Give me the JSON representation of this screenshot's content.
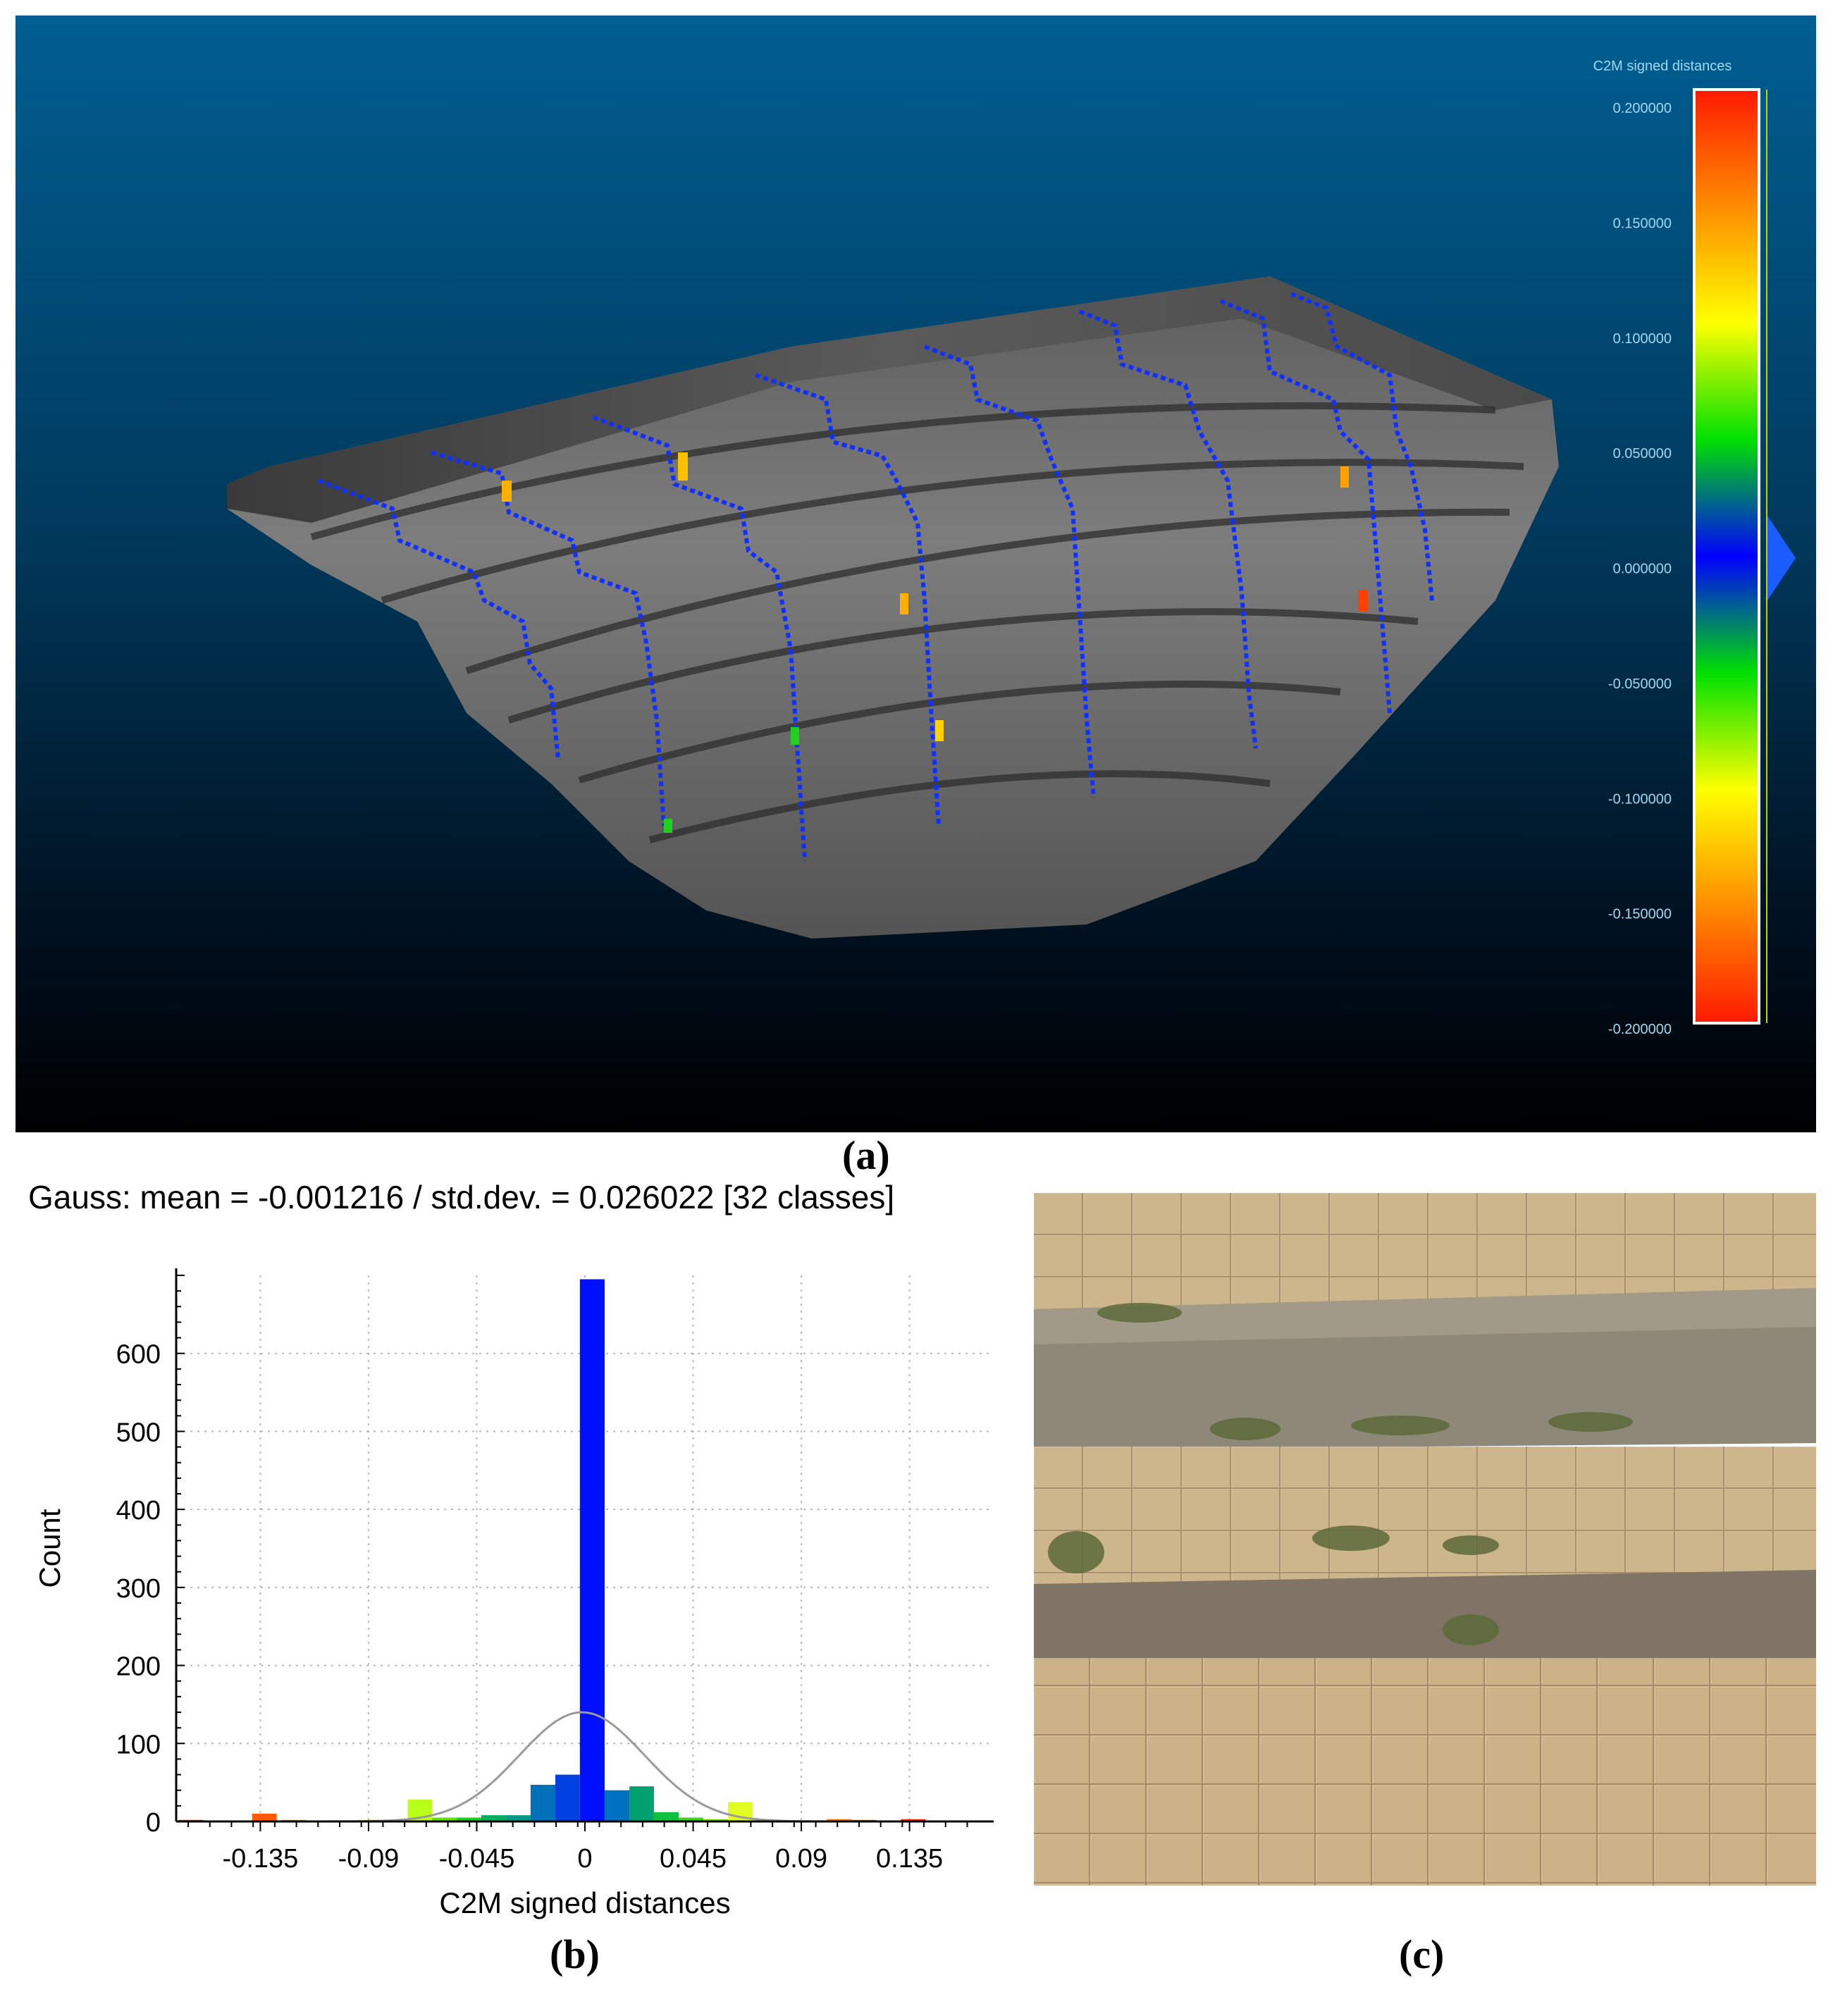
{
  "panel_a": {
    "caption": "(a)",
    "colorbar": {
      "title": "C2M signed distances",
      "ticks": [
        "0.200000",
        "0.150000",
        "0.100000",
        "0.050000",
        "0.000000",
        "-0.050000",
        "-0.100000",
        "-0.150000",
        "-0.200000"
      ],
      "stops": [
        {
          "v": 0.2,
          "c": "#ff1a00"
        },
        {
          "v": 0.1,
          "c": "#ffff00"
        },
        {
          "v": 0.05,
          "c": "#00e000"
        },
        {
          "v": 0.0,
          "c": "#0000ff"
        },
        {
          "v": -0.05,
          "c": "#00e000"
        },
        {
          "v": -0.1,
          "c": "#ffff00"
        },
        {
          "v": -0.2,
          "c": "#ff1a00"
        }
      ]
    }
  },
  "panel_b": {
    "caption": "(b)",
    "title": "Gauss: mean = -0.001216 / std.dev. = 0.026022 [32 classes]"
  },
  "panel_c": {
    "caption": "(c)"
  },
  "chart_data": {
    "type": "bar",
    "xlabel": "C2M signed distances",
    "ylabel": "Count",
    "xlim": [
      -0.17,
      0.17
    ],
    "ylim": [
      0,
      700
    ],
    "xticks": [
      -0.135,
      -0.09,
      -0.045,
      0,
      0.045,
      0.09,
      0.135
    ],
    "xtick_labels": [
      "-0.135",
      "-0.09",
      "-0.045",
      "0",
      "0.045",
      "0.09",
      "0.135"
    ],
    "yticks": [
      0,
      100,
      200,
      300,
      400,
      500,
      600
    ],
    "ytick_labels": [
      "0",
      "100",
      "200",
      "300",
      "400",
      "500",
      "600"
    ],
    "grid": true,
    "gauss": {
      "mean": -0.001216,
      "std": 0.026022,
      "peak": 140
    },
    "bins": [
      {
        "x0": -0.1691,
        "x1": -0.1587,
        "value": 2,
        "color": "#ff2a00"
      },
      {
        "x0": -0.1384,
        "x1": -0.1282,
        "value": 10,
        "color": "#ff5a00"
      },
      {
        "x0": -0.1263,
        "x1": -0.116,
        "value": 2,
        "color": "#ff8c00"
      },
      {
        "x0": -0.0944,
        "x1": -0.0841,
        "value": 2,
        "color": "#ffd000"
      },
      {
        "x0": -0.0737,
        "x1": -0.0636,
        "value": 28,
        "color": "#b8ff1a"
      },
      {
        "x0": -0.0636,
        "x1": -0.0534,
        "value": 5,
        "color": "#66e000"
      },
      {
        "x0": -0.0534,
        "x1": -0.0431,
        "value": 5,
        "color": "#22cc22"
      },
      {
        "x0": -0.0431,
        "x1": -0.0327,
        "value": 8,
        "color": "#00b060"
      },
      {
        "x0": -0.0327,
        "x1": -0.0226,
        "value": 8,
        "color": "#009a8a"
      },
      {
        "x0": -0.0226,
        "x1": -0.0123,
        "value": 47,
        "color": "#0070b8"
      },
      {
        "x0": -0.0123,
        "x1": -0.0021,
        "value": 60,
        "color": "#0040e0"
      },
      {
        "x0": -0.0021,
        "x1": 0.0082,
        "value": 695,
        "color": "#0010ff"
      },
      {
        "x0": 0.0082,
        "x1": 0.0185,
        "value": 40,
        "color": "#0070c0"
      },
      {
        "x0": 0.0185,
        "x1": 0.0287,
        "value": 45,
        "color": "#00a070"
      },
      {
        "x0": 0.0287,
        "x1": 0.039,
        "value": 12,
        "color": "#10c040"
      },
      {
        "x0": 0.039,
        "x1": 0.0492,
        "value": 5,
        "color": "#40d020"
      },
      {
        "x0": 0.0492,
        "x1": 0.0595,
        "value": 3,
        "color": "#80e000"
      },
      {
        "x0": 0.0595,
        "x1": 0.0698,
        "value": 25,
        "color": "#e0ff20"
      },
      {
        "x0": 0.0698,
        "x1": 0.08,
        "value": 3,
        "color": "#f0f000"
      },
      {
        "x0": 0.1006,
        "x1": 0.1109,
        "value": 3,
        "color": "#ff8000"
      },
      {
        "x0": 0.1109,
        "x1": 0.1211,
        "value": 2,
        "color": "#ff5000"
      },
      {
        "x0": 0.1314,
        "x1": 0.1417,
        "value": 3,
        "color": "#ff3000"
      }
    ]
  }
}
